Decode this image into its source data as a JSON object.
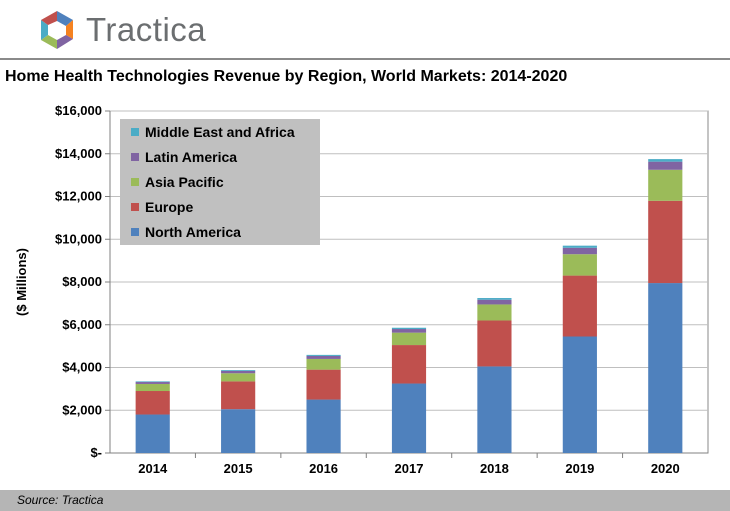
{
  "header": {
    "brand": "Tractica"
  },
  "chart_data": {
    "type": "bar",
    "stacked": true,
    "title": "Home Health Technologies Revenue by Region, World Markets: 2014-2020",
    "ylabel": "($ Millions)",
    "xlabel": "",
    "ylim": [
      0,
      16000
    ],
    "yticks": [
      0,
      2000,
      4000,
      6000,
      8000,
      10000,
      12000,
      14000,
      16000
    ],
    "ytick_labels": [
      "$-",
      "$2,000",
      "$4,000",
      "$6,000",
      "$8,000",
      "$10,000",
      "$12,000",
      "$14,000",
      "$16,000"
    ],
    "categories": [
      "2014",
      "2015",
      "2016",
      "2017",
      "2018",
      "2019",
      "2020"
    ],
    "grid": true,
    "legend_position": "top-left",
    "series": [
      {
        "name": "North America",
        "color": "#4f81bd",
        "values": [
          1800,
          2050,
          2500,
          3250,
          4050,
          5450,
          7950
        ]
      },
      {
        "name": "Europe",
        "color": "#c0504d",
        "values": [
          1100,
          1300,
          1400,
          1800,
          2150,
          2850,
          3850
        ]
      },
      {
        "name": "Asia Pacific",
        "color": "#9bbb59",
        "values": [
          330,
          380,
          500,
          580,
          750,
          1000,
          1450
        ]
      },
      {
        "name": "Latin America",
        "color": "#8064a2",
        "values": [
          90,
          110,
          140,
          170,
          220,
          300,
          380
        ]
      },
      {
        "name": "Middle East and Africa",
        "color": "#4bacc6",
        "values": [
          30,
          40,
          50,
          60,
          80,
          100,
          120
        ]
      }
    ]
  },
  "footer": {
    "source": "Source: Tractica"
  }
}
